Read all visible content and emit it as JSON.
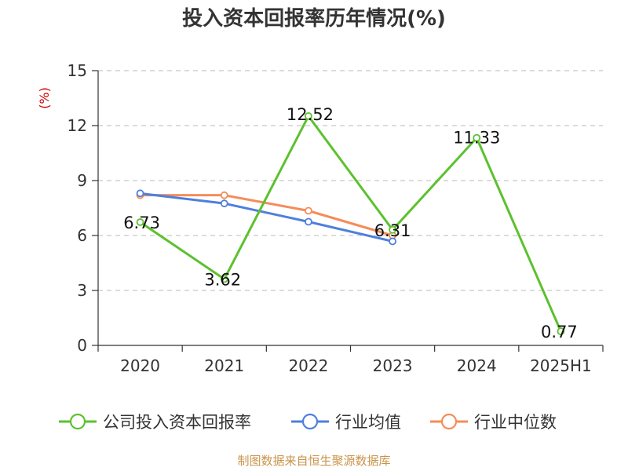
{
  "chart_data": {
    "type": "line",
    "title": "投入资本回报率历年情况(%)",
    "ylabel": "(%)",
    "xlabel": "",
    "categories": [
      "2020",
      "2021",
      "2022",
      "2023",
      "2024",
      "2025H1"
    ],
    "ylim": [
      0,
      15
    ],
    "yticks": [
      0,
      3,
      6,
      9,
      12,
      15
    ],
    "grid": true,
    "legend_position": "bottom",
    "series": [
      {
        "name": "公司投入资本回报率",
        "color": "#5cc12e",
        "values": [
          6.73,
          3.62,
          12.52,
          6.31,
          11.33,
          0.77
        ],
        "labels": [
          "6.73",
          "3.62",
          "12.52",
          "6.31",
          "11.33",
          "0.77"
        ]
      },
      {
        "name": "行业均值",
        "color": "#4e7fde",
        "values": [
          8.3,
          7.75,
          6.75,
          5.68,
          null,
          null
        ]
      },
      {
        "name": "行业中位数",
        "color": "#f58c59",
        "values": [
          8.2,
          8.2,
          7.35,
          6.0,
          null,
          null
        ]
      }
    ]
  },
  "source": "制图数据来自恒生聚源数据库",
  "colors": {
    "ylabel": "#cc0000",
    "source": "#c9944a",
    "axis": "#333333",
    "grid": "#c8c8c8"
  }
}
